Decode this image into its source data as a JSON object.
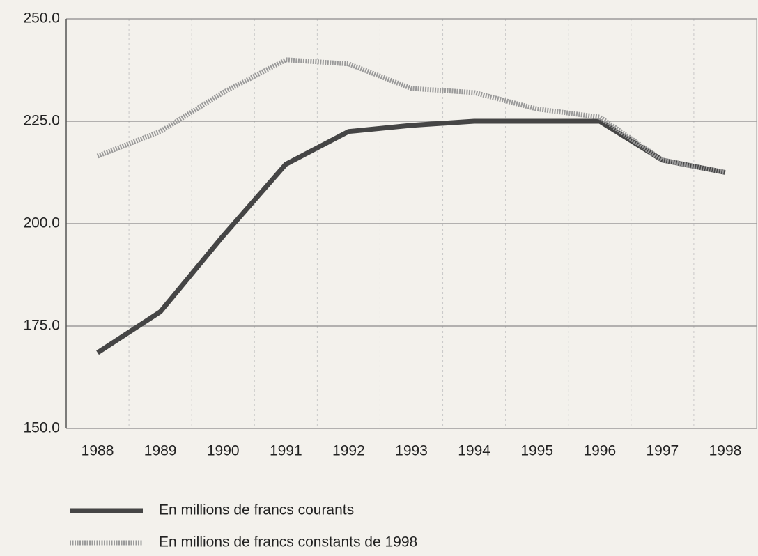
{
  "chart_data": {
    "type": "line",
    "categories": [
      "1988",
      "1989",
      "1990",
      "1991",
      "1992",
      "1993",
      "1994",
      "1995",
      "1996",
      "1997",
      "1998"
    ],
    "series": [
      {
        "name": "En millions de francs courants",
        "color": "#454545",
        "values": [
          168.5,
          178.5,
          197,
          214.5,
          222.5,
          224,
          225,
          225,
          225,
          215.5,
          212.5
        ]
      },
      {
        "name": "En millions de francs constants de 1998",
        "color": "#9a9a9a",
        "values": [
          216.5,
          222.5,
          232,
          240,
          239,
          233,
          232,
          228,
          226,
          215.5,
          212.5
        ]
      }
    ],
    "ylim": [
      150,
      250
    ],
    "yticks": [
      {
        "value": 150,
        "label": "150.0"
      },
      {
        "value": 175,
        "label": "175.0"
      },
      {
        "value": 200,
        "label": "200.0"
      },
      {
        "value": 225,
        "label": "225.0"
      },
      {
        "value": 250,
        "label": "250.0"
      }
    ],
    "grid": true,
    "legend": "bottom"
  }
}
